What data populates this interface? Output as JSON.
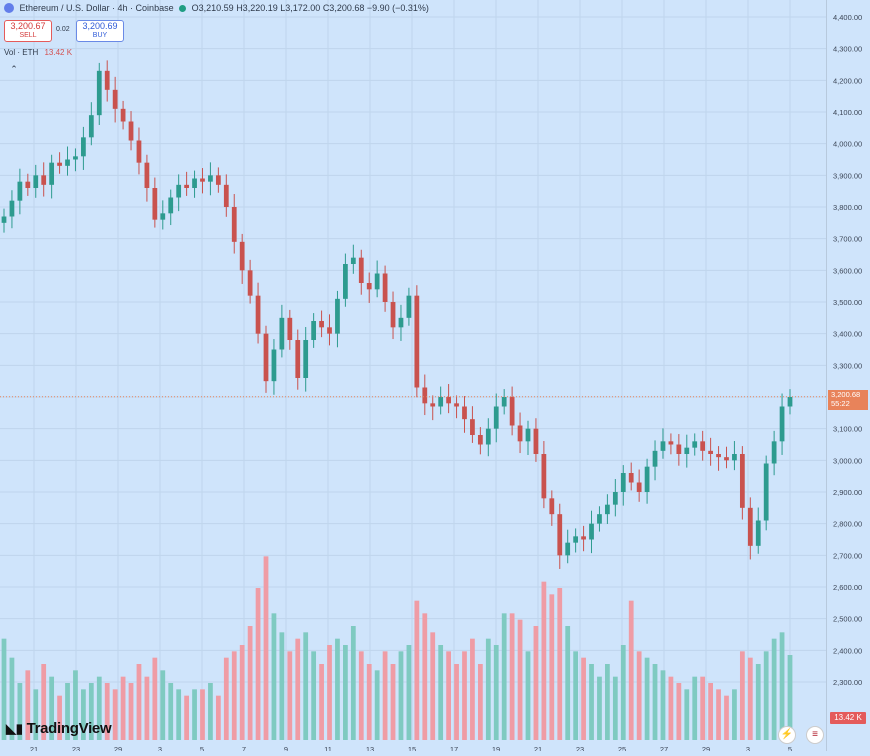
{
  "legend": {
    "symbol": "Ethereum / U.S. Dollar · 4h · Coinbase",
    "open": "O3,210.59",
    "high": "H3,220.19",
    "low": "L3,172.00",
    "close": "C3,200.68",
    "change": "−9.90 (−0.31%)"
  },
  "trade": {
    "sell_price": "3,200.67",
    "sell_label": "SELL",
    "spread": "0.02",
    "buy_price": "3,200.69",
    "buy_label": "BUY"
  },
  "volume_legend": {
    "label": "Vol · ETH",
    "value": "13.42 K"
  },
  "price_axis_ticks": [
    "4,400.00",
    "4,300.00",
    "4,200.00",
    "4,100.00",
    "4,000.00",
    "3,900.00",
    "3,800.00",
    "3,700.00",
    "3,600.00",
    "3,500.00",
    "3,400.00",
    "3,300.00",
    "3,200.00",
    "3,100.00",
    "3,000.00",
    "2,900.00",
    "2,800.00",
    "2,700.00",
    "2,600.00",
    "2,500.00",
    "2,400.00",
    "2,300.00"
  ],
  "last_price": {
    "price": "3,200.68",
    "countdown": "55:22"
  },
  "volume_tag": "13.42 K",
  "brand": "TradingView",
  "time_axis_labels": [
    "21",
    "23",
    "29",
    "3",
    "5",
    "7",
    "9",
    "11",
    "13",
    "15",
    "17",
    "19",
    "21",
    "23",
    "25",
    "27",
    "29",
    "3",
    "5"
  ],
  "colors": {
    "up": "#2d9b8f",
    "down": "#c9524e",
    "vol_up": "#7fcac1",
    "vol_down": "#ef9ca5",
    "background": "#cfe4fb",
    "last_price": "#e8835a"
  },
  "chart_data": {
    "type": "candlestick",
    "title": "Ethereum / U.S. Dollar · 4h · Coinbase",
    "ylim": [
      2300,
      4400
    ],
    "volume_max": 30000,
    "series": [
      {
        "name": "ETH/USD",
        "close": [
          3770,
          3820,
          3880,
          3860,
          3900,
          3870,
          3940,
          3930,
          3950,
          3960,
          4020,
          4090,
          4230,
          4170,
          4110,
          4070,
          4010,
          3940,
          3860,
          3760,
          3780,
          3830,
          3870,
          3860,
          3890,
          3880,
          3900,
          3870,
          3800,
          3690,
          3600,
          3520,
          3400,
          3250,
          3350,
          3450,
          3380,
          3260,
          3380,
          3440,
          3420,
          3400,
          3510,
          3620,
          3640,
          3560,
          3540,
          3590,
          3500,
          3420,
          3450,
          3520,
          3230,
          3180,
          3170,
          3200,
          3180,
          3170,
          3130,
          3080,
          3050,
          3100,
          3170,
          3200,
          3110,
          3060,
          3100,
          3020,
          2880,
          2830,
          2700,
          2740,
          2760,
          2750,
          2800,
          2830,
          2860,
          2900,
          2960,
          2930,
          2900,
          2980,
          3030,
          3060,
          3050,
          3020,
          3040,
          3060,
          3030,
          3020,
          3010,
          3000,
          3020,
          2850,
          2730,
          2810,
          2990,
          3060,
          3170,
          3200
        ],
        "volume": [
          16000,
          13000,
          9000,
          11000,
          8000,
          12000,
          10000,
          7000,
          9000,
          11000,
          8000,
          9000,
          10000,
          9000,
          8000,
          10000,
          9000,
          12000,
          10000,
          13000,
          11000,
          9000,
          8000,
          7000,
          8000,
          8000,
          9000,
          7000,
          13000,
          14000,
          15000,
          18000,
          24000,
          29000,
          20000,
          17000,
          14000,
          16000,
          17000,
          14000,
          12000,
          15000,
          16000,
          15000,
          18000,
          14000,
          12000,
          11000,
          14000,
          12000,
          14000,
          15000,
          22000,
          20000,
          17000,
          15000,
          14000,
          12000,
          14000,
          16000,
          12000,
          16000,
          15000,
          20000,
          20000,
          19000,
          14000,
          18000,
          25000,
          23000,
          24000,
          18000,
          14000,
          13000,
          12000,
          10000,
          12000,
          10000,
          15000,
          22000,
          14000,
          13000,
          12000,
          11000,
          10000,
          9000,
          8000,
          10000,
          10000,
          9000,
          8000,
          7000,
          8000,
          14000,
          13000,
          12000,
          14000,
          16000,
          17000,
          13420
        ]
      }
    ]
  }
}
